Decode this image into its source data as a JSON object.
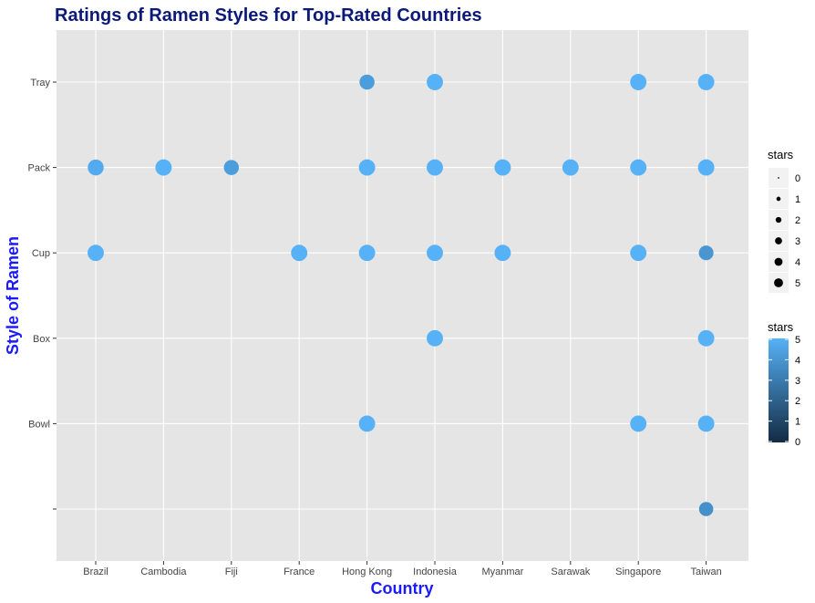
{
  "chart_data": {
    "type": "scatter",
    "title": "Ratings of Ramen Styles for Top-Rated Countries",
    "xlabel": "Country",
    "ylabel": "Style of Ramen",
    "x_categories": [
      "Brazil",
      "Cambodia",
      "Fiji",
      "France",
      "Hong Kong",
      "Indonesia",
      "Myanmar",
      "Sarawak",
      "Singapore",
      "Taiwan"
    ],
    "y_categories": [
      "",
      "Bowl",
      "Box",
      "Cup",
      "Pack",
      "Tray"
    ],
    "grid": true,
    "points": [
      {
        "x": "Hong Kong",
        "y": "Tray",
        "stars": 4.25
      },
      {
        "x": "Indonesia",
        "y": "Tray",
        "stars": 5
      },
      {
        "x": "Singapore",
        "y": "Tray",
        "stars": 5
      },
      {
        "x": "Taiwan",
        "y": "Tray",
        "stars": 5
      },
      {
        "x": "Brazil",
        "y": "Pack",
        "stars": 4.75
      },
      {
        "x": "Cambodia",
        "y": "Pack",
        "stars": 5
      },
      {
        "x": "Fiji",
        "y": "Pack",
        "stars": 4.25
      },
      {
        "x": "Hong Kong",
        "y": "Pack",
        "stars": 5
      },
      {
        "x": "Indonesia",
        "y": "Pack",
        "stars": 5
      },
      {
        "x": "Myanmar",
        "y": "Pack",
        "stars": 5
      },
      {
        "x": "Sarawak",
        "y": "Pack",
        "stars": 5
      },
      {
        "x": "Singapore",
        "y": "Pack",
        "stars": 5
      },
      {
        "x": "Taiwan",
        "y": "Pack",
        "stars": 5
      },
      {
        "x": "Brazil",
        "y": "Cup",
        "stars": 5
      },
      {
        "x": "France",
        "y": "Cup",
        "stars": 5
      },
      {
        "x": "Hong Kong",
        "y": "Cup",
        "stars": 5
      },
      {
        "x": "Indonesia",
        "y": "Cup",
        "stars": 5
      },
      {
        "x": "Myanmar",
        "y": "Cup",
        "stars": 5
      },
      {
        "x": "Singapore",
        "y": "Cup",
        "stars": 5
      },
      {
        "x": "Taiwan",
        "y": "Cup",
        "stars": 4
      },
      {
        "x": "Indonesia",
        "y": "Box",
        "stars": 5
      },
      {
        "x": "Taiwan",
        "y": "Box",
        "stars": 5
      },
      {
        "x": "Hong Kong",
        "y": "Bowl",
        "stars": 5
      },
      {
        "x": "Singapore",
        "y": "Bowl",
        "stars": 5
      },
      {
        "x": "Taiwan",
        "y": "Bowl",
        "stars": 5
      },
      {
        "x": "Taiwan",
        "y": "",
        "stars": 3.75
      }
    ],
    "legends": {
      "size": {
        "title": "stars",
        "labels": [
          "0",
          "1",
          "2",
          "3",
          "4",
          "5"
        ]
      },
      "color": {
        "title": "stars",
        "labels": [
          "5",
          "4",
          "3",
          "2",
          "1",
          "0"
        ],
        "low_color": "#132b43",
        "high_color": "#56b1f7"
      }
    },
    "legend_placement": "right",
    "colors": {
      "panel_background": "#e5e5e5",
      "grid": "#ffffff",
      "title": "#0b1a7a",
      "axis_title": "#1a1aff",
      "tick_label": "#444444",
      "tick_mark": "#333333",
      "legend_key_background": "#f2f2f2",
      "legend_point": "#000000"
    }
  }
}
